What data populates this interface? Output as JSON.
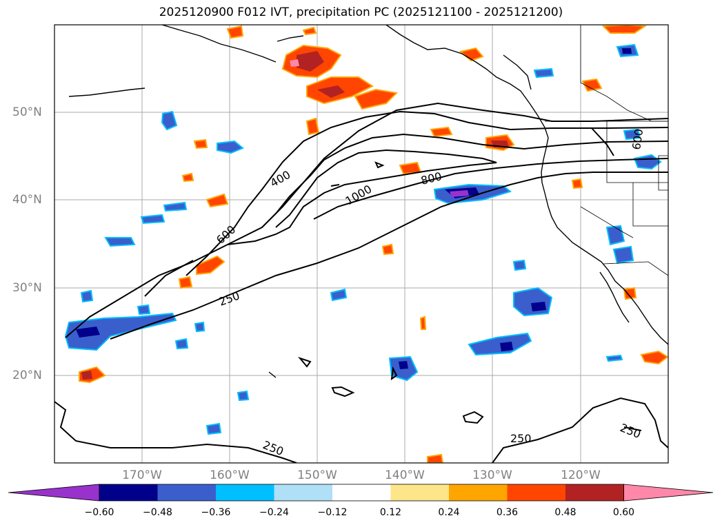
{
  "title": "2025120900 F012 IVT, precipitation PC (2025121100 - 2025121200)",
  "map": {
    "lat_labels": [
      "50°N",
      "40°N",
      "30°N",
      "20°N"
    ],
    "lon_labels": [
      "170°W",
      "160°W",
      "150°W",
      "140°W",
      "130°W",
      "120°W"
    ],
    "contour_labels": [
      "400",
      "600",
      "800",
      "1000",
      "250",
      "250",
      "250",
      "250",
      "600"
    ]
  },
  "colorbar": {
    "ticks": [
      "−0.60",
      "−0.48",
      "−0.36",
      "−0.24",
      "−0.12",
      "0.12",
      "0.24",
      "0.36",
      "0.48",
      "0.60"
    ],
    "colors": [
      "#9932cc",
      "#00008b",
      "#3a5fcd",
      "#00bfff",
      "#b0e0f7",
      "#ffffff",
      "#fde68a",
      "#ffa500",
      "#ff4500",
      "#b22222",
      "#ff88aa"
    ]
  }
}
